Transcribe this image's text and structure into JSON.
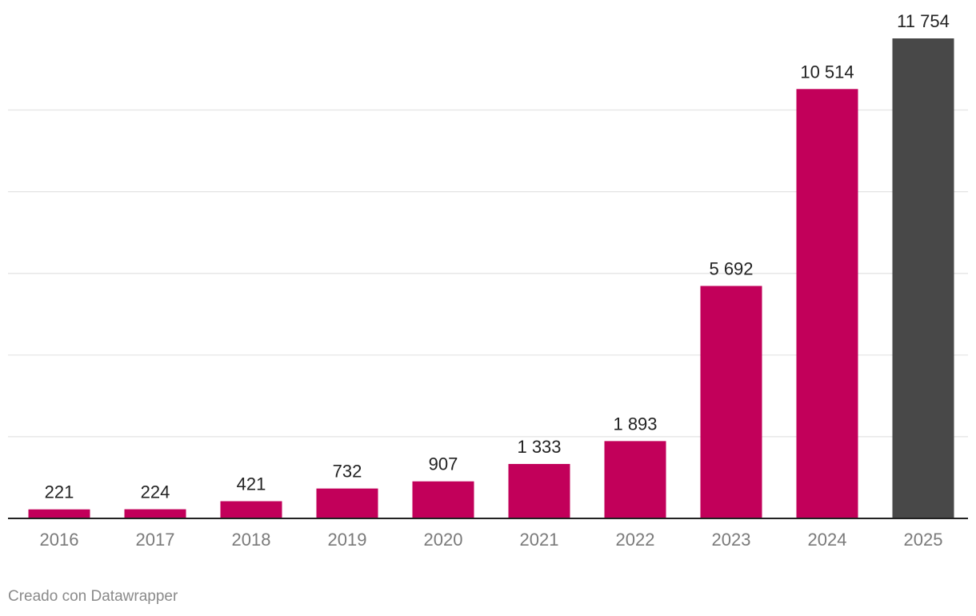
{
  "chart_data": {
    "type": "bar",
    "categories": [
      "2016",
      "2017",
      "2018",
      "2019",
      "2020",
      "2021",
      "2022",
      "2023",
      "2024",
      "2025"
    ],
    "values": [
      221,
      224,
      421,
      732,
      907,
      1333,
      1893,
      5692,
      10514,
      11754
    ],
    "value_labels": [
      "221",
      "224",
      "421",
      "732",
      "907",
      "1 333",
      "1 893",
      "5 692",
      "10 514",
      "11 754"
    ],
    "ylim": [
      0,
      12000
    ],
    "gridlines": [
      0,
      2000,
      4000,
      6000,
      8000,
      10000
    ],
    "grid": true,
    "colors": {
      "default": "#c2005a",
      "highlight": "#484848",
      "highlight_index": 9,
      "grid": "#e3e3e3",
      "baseline": "#222222",
      "tick_text": "#7a7a7a",
      "label_text": "#222222"
    }
  },
  "footer": {
    "credit": "Creado con Datawrapper"
  }
}
